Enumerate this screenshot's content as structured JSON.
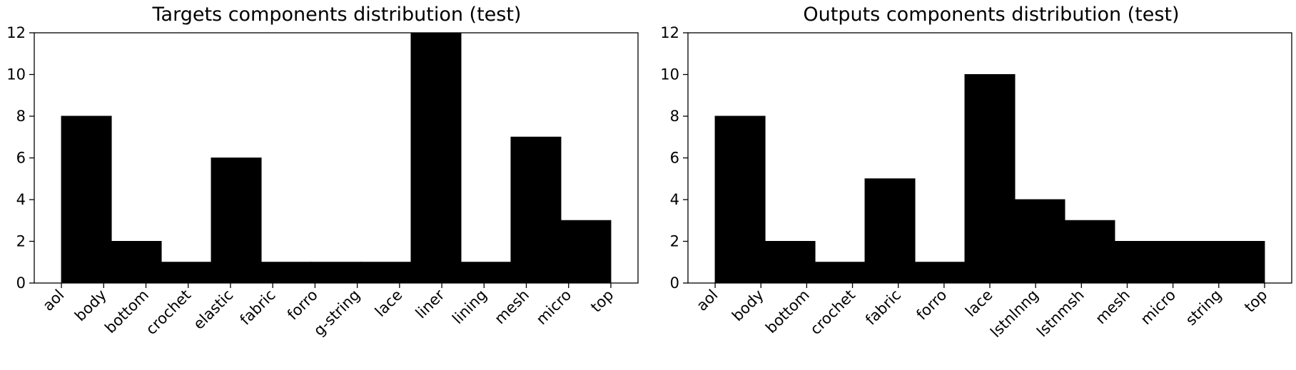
{
  "chart_data": [
    {
      "type": "bar",
      "title": "Targets components distribution (test)",
      "xlabel": "",
      "ylabel": "",
      "ylim": [
        0,
        12
      ],
      "yticks": [
        0,
        2,
        4,
        6,
        8,
        10,
        12
      ],
      "grid": false,
      "bar_color": "#000000",
      "x_tick_labels": [
        "aol",
        "body",
        "bottom",
        "crochet",
        "elastic",
        "fabric",
        "forro",
        "g-string",
        "lace",
        "liner",
        "lining",
        "mesh",
        "micro",
        "top"
      ],
      "categories": [
        "aol",
        "body",
        "bottom",
        "crochet",
        "fabric",
        "forro",
        "g-string",
        "lace",
        "lining",
        "mesh",
        "micro"
      ],
      "values": [
        8,
        2,
        1,
        6,
        1,
        1,
        1,
        12,
        1,
        7,
        3
      ]
    },
    {
      "type": "bar",
      "title": "Outputs components distribution (test)",
      "xlabel": "",
      "ylabel": "",
      "ylim": [
        0,
        12
      ],
      "yticks": [
        0,
        2,
        4,
        6,
        8,
        10,
        12
      ],
      "grid": false,
      "bar_color": "#000000",
      "x_tick_labels": [
        "aol",
        "body",
        "bottom",
        "crochet",
        "fabric",
        "forro",
        "lace",
        "lstnlnng",
        "lstnmsh",
        "mesh",
        "micro",
        "string",
        "top"
      ],
      "categories": [
        "aol",
        "body",
        "bottom",
        "fabric",
        "forro",
        "lace",
        "lstnlnng",
        "lstnmsh",
        "mesh",
        "micro",
        "string"
      ],
      "values": [
        8,
        2,
        1,
        5,
        1,
        10,
        4,
        3,
        2,
        2,
        2
      ]
    }
  ]
}
